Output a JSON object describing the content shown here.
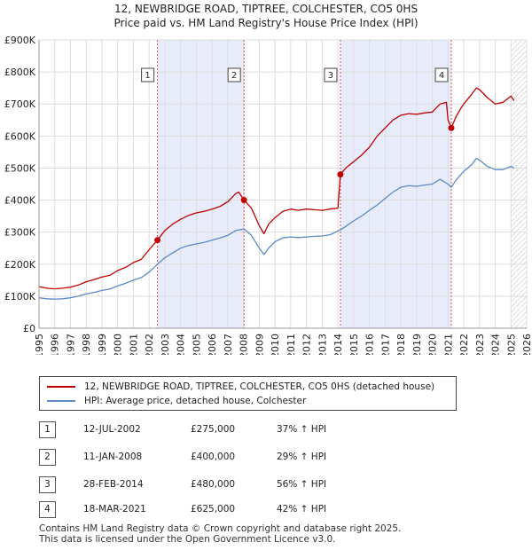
{
  "title": {
    "line1": "12, NEWBRIDGE ROAD, TIPTREE, COLCHESTER, CO5 0HS",
    "line2": "Price paid vs. HM Land Registry's House Price Index (HPI)"
  },
  "colors": {
    "property": "#c00000",
    "hpi": "#5b8ac6",
    "shade": "#e8ecfa",
    "vline": "#d9534f"
  },
  "chart_data": {
    "type": "line",
    "xlim": [
      1995,
      2026
    ],
    "ylim": [
      0,
      900000
    ],
    "yticks": [
      {
        "value": 0,
        "label": "£0"
      },
      {
        "value": 100000,
        "label": "£100K"
      },
      {
        "value": 200000,
        "label": "£200K"
      },
      {
        "value": 300000,
        "label": "£300K"
      },
      {
        "value": 400000,
        "label": "£400K"
      },
      {
        "value": 500000,
        "label": "£500K"
      },
      {
        "value": 600000,
        "label": "£600K"
      },
      {
        "value": 700000,
        "label": "£700K"
      },
      {
        "value": 800000,
        "label": "£800K"
      },
      {
        "value": 900000,
        "label": "£900K"
      }
    ],
    "xticks": [
      "1995",
      "1996",
      "1997",
      "1998",
      "1999",
      "2000",
      "2001",
      "2002",
      "2003",
      "2004",
      "2005",
      "2006",
      "2007",
      "2008",
      "2009",
      "2010",
      "2011",
      "2012",
      "2013",
      "2014",
      "2015",
      "2016",
      "2017",
      "2018",
      "2019",
      "2020",
      "2021",
      "2022",
      "2023",
      "2024",
      "2025",
      "2026"
    ],
    "shaded_ranges": [
      [
        2002.53,
        2008.03
      ],
      [
        2014.16,
        2021.21
      ]
    ],
    "hatch_from": 2025.0,
    "series": [
      {
        "name": "12, NEWBRIDGE ROAD, TIPTREE, COLCHESTER, CO5 0HS (detached house)",
        "points": [
          [
            1995.0,
            130000
          ],
          [
            1995.5,
            125000
          ],
          [
            1996.0,
            123000
          ],
          [
            1996.5,
            125000
          ],
          [
            1997.0,
            128000
          ],
          [
            1997.5,
            135000
          ],
          [
            1998.0,
            145000
          ],
          [
            1998.5,
            152000
          ],
          [
            1999.0,
            160000
          ],
          [
            1999.5,
            165000
          ],
          [
            2000.0,
            180000
          ],
          [
            2000.5,
            190000
          ],
          [
            2001.0,
            205000
          ],
          [
            2001.5,
            215000
          ],
          [
            2002.0,
            245000
          ],
          [
            2002.53,
            275000
          ],
          [
            2003.0,
            305000
          ],
          [
            2003.5,
            325000
          ],
          [
            2004.0,
            340000
          ],
          [
            2004.5,
            352000
          ],
          [
            2005.0,
            360000
          ],
          [
            2005.5,
            365000
          ],
          [
            2006.0,
            372000
          ],
          [
            2006.5,
            380000
          ],
          [
            2007.0,
            395000
          ],
          [
            2007.5,
            420000
          ],
          [
            2007.7,
            425000
          ],
          [
            2008.03,
            400000
          ],
          [
            2008.5,
            375000
          ],
          [
            2009.0,
            320000
          ],
          [
            2009.3,
            295000
          ],
          [
            2009.6,
            325000
          ],
          [
            2010.0,
            345000
          ],
          [
            2010.5,
            365000
          ],
          [
            2011.0,
            372000
          ],
          [
            2011.5,
            368000
          ],
          [
            2012.0,
            372000
          ],
          [
            2012.5,
            370000
          ],
          [
            2013.0,
            368000
          ],
          [
            2013.5,
            372000
          ],
          [
            2014.0,
            375000
          ],
          [
            2014.16,
            480000
          ],
          [
            2014.5,
            500000
          ],
          [
            2015.0,
            520000
          ],
          [
            2015.5,
            540000
          ],
          [
            2016.0,
            565000
          ],
          [
            2016.5,
            600000
          ],
          [
            2017.0,
            625000
          ],
          [
            2017.5,
            650000
          ],
          [
            2018.0,
            665000
          ],
          [
            2018.5,
            670000
          ],
          [
            2019.0,
            668000
          ],
          [
            2019.5,
            672000
          ],
          [
            2020.0,
            675000
          ],
          [
            2020.5,
            700000
          ],
          [
            2020.9,
            705000
          ],
          [
            2021.0,
            650000
          ],
          [
            2021.21,
            625000
          ],
          [
            2021.5,
            660000
          ],
          [
            2021.8,
            685000
          ],
          [
            2022.0,
            700000
          ],
          [
            2022.5,
            730000
          ],
          [
            2022.8,
            750000
          ],
          [
            2023.0,
            745000
          ],
          [
            2023.5,
            720000
          ],
          [
            2024.0,
            700000
          ],
          [
            2024.5,
            705000
          ],
          [
            2025.0,
            725000
          ],
          [
            2025.2,
            710000
          ]
        ]
      },
      {
        "name": "HPI: Average price, detached house, Colchester",
        "points": [
          [
            1995.0,
            95000
          ],
          [
            1995.5,
            92000
          ],
          [
            1996.0,
            91000
          ],
          [
            1996.5,
            92000
          ],
          [
            1997.0,
            95000
          ],
          [
            1997.5,
            100000
          ],
          [
            1998.0,
            107000
          ],
          [
            1998.5,
            112000
          ],
          [
            1999.0,
            118000
          ],
          [
            1999.5,
            122000
          ],
          [
            2000.0,
            132000
          ],
          [
            2000.5,
            140000
          ],
          [
            2001.0,
            150000
          ],
          [
            2001.5,
            158000
          ],
          [
            2002.0,
            175000
          ],
          [
            2002.53,
            200000
          ],
          [
            2003.0,
            220000
          ],
          [
            2003.5,
            235000
          ],
          [
            2004.0,
            250000
          ],
          [
            2004.5,
            258000
          ],
          [
            2005.0,
            263000
          ],
          [
            2005.5,
            268000
          ],
          [
            2006.0,
            275000
          ],
          [
            2006.5,
            282000
          ],
          [
            2007.0,
            290000
          ],
          [
            2007.5,
            305000
          ],
          [
            2008.03,
            310000
          ],
          [
            2008.5,
            290000
          ],
          [
            2009.0,
            250000
          ],
          [
            2009.3,
            230000
          ],
          [
            2009.6,
            250000
          ],
          [
            2010.0,
            270000
          ],
          [
            2010.5,
            282000
          ],
          [
            2011.0,
            285000
          ],
          [
            2011.5,
            283000
          ],
          [
            2012.0,
            285000
          ],
          [
            2012.5,
            287000
          ],
          [
            2013.0,
            288000
          ],
          [
            2013.5,
            292000
          ],
          [
            2014.16,
            307000
          ],
          [
            2014.5,
            318000
          ],
          [
            2015.0,
            335000
          ],
          [
            2015.5,
            350000
          ],
          [
            2016.0,
            368000
          ],
          [
            2016.5,
            385000
          ],
          [
            2017.0,
            405000
          ],
          [
            2017.5,
            425000
          ],
          [
            2018.0,
            440000
          ],
          [
            2018.5,
            445000
          ],
          [
            2019.0,
            443000
          ],
          [
            2019.5,
            447000
          ],
          [
            2020.0,
            450000
          ],
          [
            2020.5,
            465000
          ],
          [
            2021.0,
            450000
          ],
          [
            2021.21,
            440000
          ],
          [
            2021.5,
            462000
          ],
          [
            2022.0,
            490000
          ],
          [
            2022.5,
            510000
          ],
          [
            2022.8,
            530000
          ],
          [
            2023.0,
            525000
          ],
          [
            2023.5,
            505000
          ],
          [
            2024.0,
            495000
          ],
          [
            2024.5,
            495000
          ],
          [
            2025.0,
            505000
          ],
          [
            2025.2,
            500000
          ]
        ]
      }
    ],
    "markers": [
      {
        "label": "1",
        "x": 2002.53,
        "y": 275000
      },
      {
        "label": "2",
        "x": 2008.03,
        "y": 400000
      },
      {
        "label": "3",
        "x": 2014.16,
        "y": 480000
      },
      {
        "label": "4",
        "x": 2021.21,
        "y": 625000
      }
    ]
  },
  "legend": {
    "property_label": "12, NEWBRIDGE ROAD, TIPTREE, COLCHESTER, CO5 0HS (detached house)",
    "hpi_label": "HPI: Average price, detached house, Colchester"
  },
  "transactions": [
    {
      "num": "1",
      "date": "12-JUL-2002",
      "price": "£275,000",
      "hpi": "37% ↑ HPI"
    },
    {
      "num": "2",
      "date": "11-JAN-2008",
      "price": "£400,000",
      "hpi": "29% ↑ HPI"
    },
    {
      "num": "3",
      "date": "28-FEB-2014",
      "price": "£480,000",
      "hpi": "56% ↑ HPI"
    },
    {
      "num": "4",
      "date": "18-MAR-2021",
      "price": "£625,000",
      "hpi": "42% ↑ HPI"
    }
  ],
  "footer": {
    "line1": "Contains HM Land Registry data © Crown copyright and database right 2025.",
    "line2": "This data is licensed under the Open Government Licence v3.0."
  }
}
